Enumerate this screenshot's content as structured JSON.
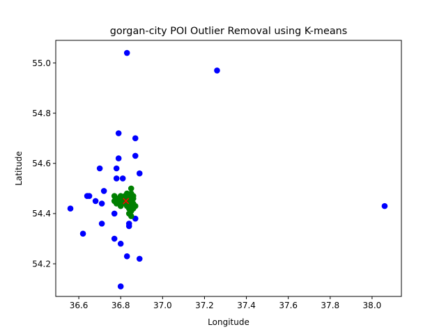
{
  "chart_data": {
    "type": "scatter",
    "title": "gorgan-city POI Outlier Removal using K-means",
    "xlabel": "Longitude",
    "ylabel": "Latitude",
    "xlim": [
      36.49,
      38.14
    ],
    "ylim": [
      54.07,
      55.09
    ],
    "xticks": [
      "36.6",
      "36.8",
      "37.0",
      "37.2",
      "37.4",
      "37.6",
      "37.8",
      "38.0"
    ],
    "xtick_values": [
      36.6,
      36.8,
      37.0,
      37.2,
      37.4,
      37.6,
      37.8,
      38.0
    ],
    "yticks": [
      "54.2",
      "54.4",
      "54.6",
      "54.8",
      "55.0"
    ],
    "ytick_values": [
      54.2,
      54.4,
      54.6,
      54.8,
      55.0
    ],
    "grid": false,
    "legend": "none",
    "series": [
      {
        "role": "outliers",
        "color": "#0000ff",
        "marker": "circle",
        "points": [
          [
            36.83,
            55.04
          ],
          [
            37.26,
            54.97
          ],
          [
            38.06,
            54.43
          ],
          [
            36.79,
            54.72
          ],
          [
            36.87,
            54.7
          ],
          [
            36.87,
            54.63
          ],
          [
            36.79,
            54.62
          ],
          [
            36.7,
            54.58
          ],
          [
            36.78,
            54.58
          ],
          [
            36.89,
            54.56
          ],
          [
            36.81,
            54.54
          ],
          [
            36.78,
            54.54
          ],
          [
            36.72,
            54.49
          ],
          [
            36.64,
            54.47
          ],
          [
            36.65,
            54.47
          ],
          [
            36.68,
            54.45
          ],
          [
            36.71,
            54.44
          ],
          [
            36.56,
            54.42
          ],
          [
            36.77,
            54.4
          ],
          [
            36.87,
            54.38
          ],
          [
            36.71,
            54.36
          ],
          [
            36.84,
            54.36
          ],
          [
            36.84,
            54.35
          ],
          [
            36.62,
            54.32
          ],
          [
            36.77,
            54.3
          ],
          [
            36.8,
            54.28
          ],
          [
            36.83,
            54.23
          ],
          [
            36.89,
            54.22
          ],
          [
            36.8,
            54.11
          ]
        ]
      },
      {
        "role": "inliers",
        "color": "#008000",
        "marker": "circle",
        "points": [
          [
            36.77,
            54.47
          ],
          [
            36.78,
            54.46
          ],
          [
            36.79,
            54.46
          ],
          [
            36.8,
            54.47
          ],
          [
            36.81,
            54.46
          ],
          [
            36.82,
            54.45
          ],
          [
            36.83,
            54.46
          ],
          [
            36.84,
            54.47
          ],
          [
            36.85,
            54.48
          ],
          [
            36.85,
            54.5
          ],
          [
            36.83,
            54.48
          ],
          [
            36.81,
            54.44
          ],
          [
            36.8,
            54.43
          ],
          [
            36.78,
            54.44
          ],
          [
            36.77,
            54.45
          ],
          [
            36.84,
            54.44
          ],
          [
            36.85,
            54.43
          ],
          [
            36.86,
            54.44
          ],
          [
            36.87,
            54.43
          ],
          [
            36.85,
            54.45
          ],
          [
            36.86,
            54.46
          ],
          [
            36.84,
            54.42
          ],
          [
            36.85,
            54.41
          ],
          [
            36.84,
            54.4
          ],
          [
            36.85,
            54.39
          ],
          [
            36.86,
            54.42
          ],
          [
            36.82,
            54.47
          ],
          [
            36.8,
            54.45
          ],
          [
            36.79,
            54.45
          ],
          [
            36.83,
            54.43
          ],
          [
            36.82,
            54.44
          ],
          [
            36.84,
            54.45
          ],
          [
            36.86,
            54.47
          ],
          [
            36.85,
            54.47
          ]
        ]
      },
      {
        "role": "centroid",
        "color": "#ff0000",
        "marker": "x",
        "points": [
          [
            36.825,
            54.45
          ]
        ]
      }
    ]
  }
}
